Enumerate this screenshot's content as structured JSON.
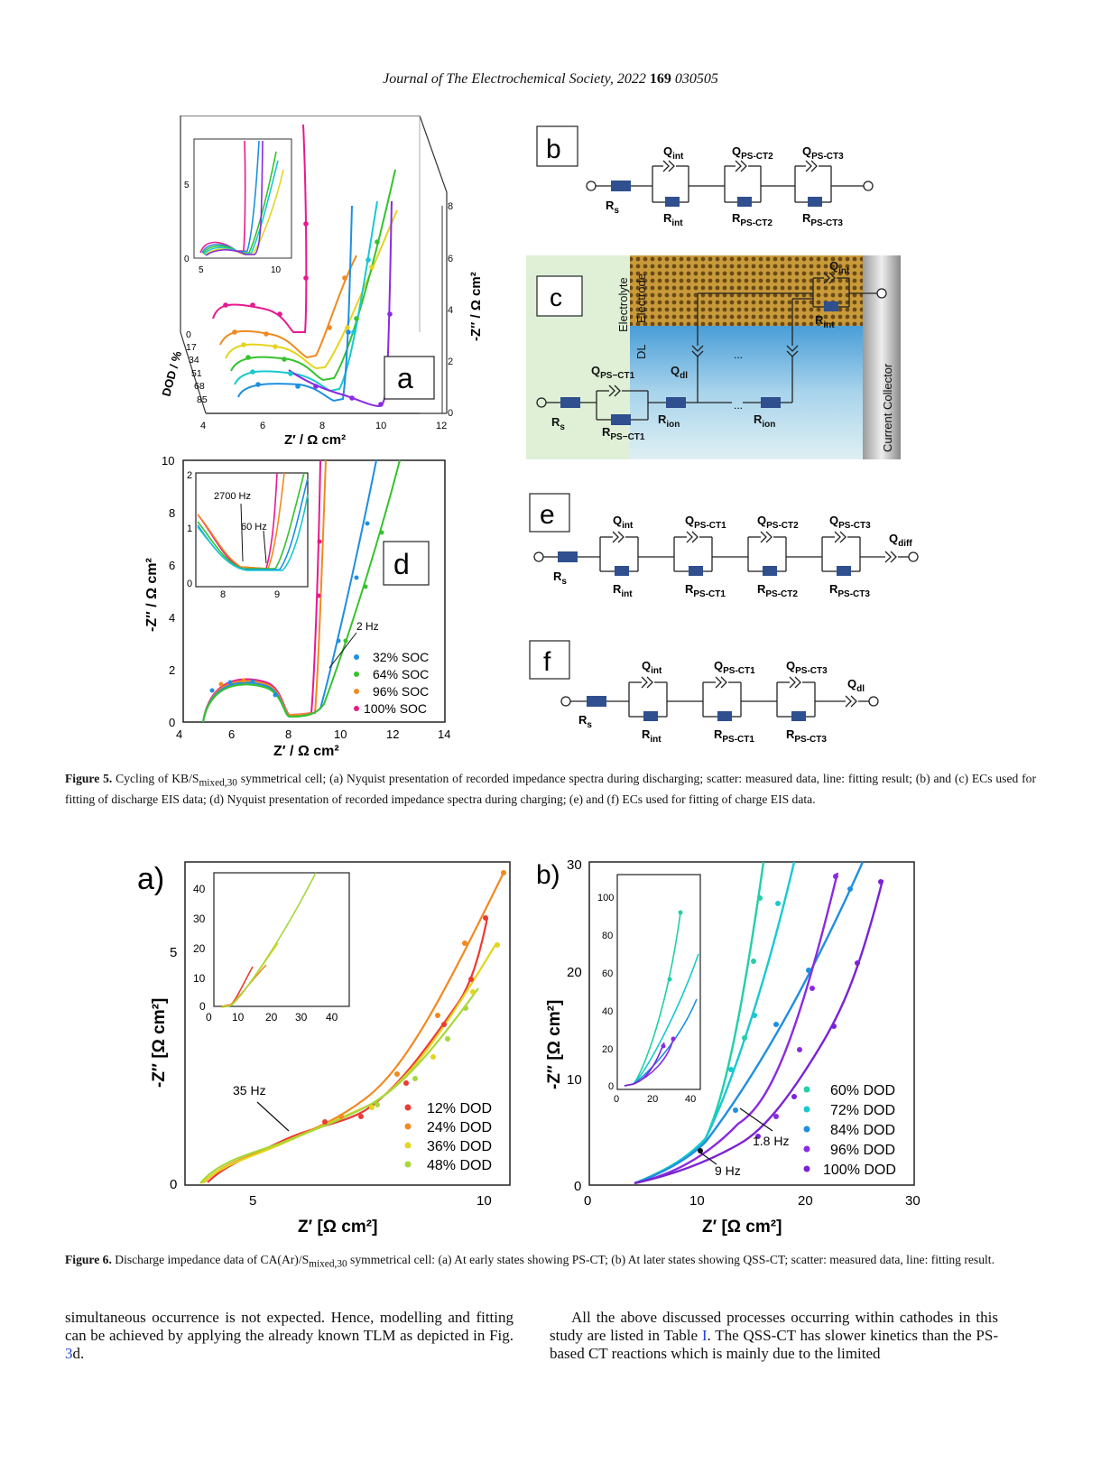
{
  "header": {
    "journal": "Journal of The Electrochemical Society",
    "year_text": ", 2022 ",
    "volume": "169",
    "article": " 030505"
  },
  "colors": {
    "pink": "#e8198f",
    "orange": "#f08a20",
    "yellow": "#e4d51e",
    "green": "#36c22e",
    "cyan": "#19c9cf",
    "blue": "#1f8fe0",
    "violet": "#8a2be2",
    "red": "#ec3a34",
    "lime": "#a6d83a",
    "teal": "#22cfa8",
    "purple": "#7b22d6",
    "navy": "#2f4f8f"
  },
  "fig5": {
    "panel_a": {
      "label": "a",
      "xlabel": "Z′ / Ω cm²",
      "ylabel": "-Z″ / Ω cm²",
      "depth_label": "DOD / %",
      "x_ticks": [
        "4",
        "6",
        "8",
        "10",
        "12"
      ],
      "z_ticks": [
        "0",
        "2",
        "4",
        "6",
        "8"
      ],
      "depth_ticks": [
        "0",
        "17",
        "34",
        "51",
        "68",
        "85"
      ],
      "inset": {
        "x_ticks": [
          "5",
          "10"
        ],
        "y_ticks": [
          "0",
          "5"
        ]
      }
    },
    "panel_d": {
      "label": "d",
      "xlabel": "Z′ / Ω cm²",
      "ylabel": "-Z″ / Ω cm²",
      "x_ticks": [
        "4",
        "6",
        "8",
        "10",
        "12",
        "14"
      ],
      "y_ticks": [
        "0",
        "2",
        "4",
        "6",
        "8",
        "10"
      ],
      "annotation": "2 Hz",
      "legend": [
        "32% SOC",
        "64% SOC",
        "96% SOC",
        "100% SOC"
      ],
      "inset": {
        "x_ticks": [
          "8",
          "9"
        ],
        "y_ticks": [
          "0",
          "1",
          "2"
        ],
        "annot1": "2700 Hz",
        "annot2": "60 Hz"
      }
    },
    "panel_b": {
      "label": "b",
      "Rs": "R",
      "Rs_sub": "s",
      "Qint": "Q",
      "Qint_sub": "int",
      "Rint": "R",
      "Rint_sub": "int",
      "Q2": "Q",
      "Q2_sub": "PS-CT2",
      "R2": "R",
      "R2_sub": "PS-CT2",
      "Q3": "Q",
      "Q3_sub": "PS-CT3",
      "R3": "R",
      "R3_sub": "PS-CT3"
    },
    "panel_c": {
      "label": "c",
      "electrolyte": "Electrolyte",
      "electrode": "Electrode",
      "dl": "DL",
      "collector": "Current Collector",
      "Qint": "Q",
      "Qint_sub": "int",
      "Rint": "R",
      "Rint_sub": "int",
      "Qdl": "Q",
      "Qdl_sub": "dl",
      "Qps": "Q",
      "Qps_sub": "PS−CT1",
      "Rps": "R",
      "Rps_sub": "PS−CT1",
      "Rs": "R",
      "Rs_sub": "s",
      "Rion": "R",
      "Rion_sub": "ion",
      "dots": "..."
    },
    "panel_e": {
      "label": "e",
      "Rs": "R",
      "Rs_sub": "s",
      "Qint": "Q",
      "Qint_sub": "int",
      "Rint": "R",
      "Rint_sub": "int",
      "Q1": "Q",
      "Q1_sub": "PS-CT1",
      "R1": "R",
      "R1_sub": "PS-CT1",
      "Q2": "Q",
      "Q2_sub": "PS-CT2",
      "R2": "R",
      "R2_sub": "PS-CT2",
      "Q3": "Q",
      "Q3_sub": "PS-CT3",
      "R3": "R",
      "R3_sub": "PS-CT3",
      "Qd": "Q",
      "Qd_sub": "diff"
    },
    "panel_f": {
      "label": "f",
      "Rs": "R",
      "Rs_sub": "s",
      "Qint": "Q",
      "Qint_sub": "int",
      "Rint": "R",
      "Rint_sub": "int",
      "Q1": "Q",
      "Q1_sub": "PS-CT1",
      "R1": "R",
      "R1_sub": "PS-CT1",
      "Q3": "Q",
      "Q3_sub": "PS-CT3",
      "R3": "R",
      "R3_sub": "PS-CT3",
      "Qd": "Q",
      "Qd_sub": "dl"
    },
    "caption": {
      "title": "Figure 5.",
      "t1": " Cycling of KB/S",
      "sub": "mixed,30",
      "t2": " symmetrical cell; (a) Nyquist presentation of recorded impedance spectra during discharging; scatter: measured data, line: fitting result; (b) and (c) ECs used for fitting of discharge EIS data; (d) Nyquist presentation of recorded impedance spectra during charging; (e) and (f) ECs used for fitting of charge EIS data."
    }
  },
  "fig6": {
    "panel_a": {
      "label": "a)",
      "xlabel": "Z′ [Ω cm²]",
      "ylabel": "-Z″ [Ω cm²]",
      "x_ticks": [
        "5",
        "10"
      ],
      "y_ticks": [
        "0",
        "5"
      ],
      "annotation": "35 Hz",
      "legend": [
        "12% DOD",
        "24% DOD",
        "36% DOD",
        "48% DOD"
      ],
      "inset": {
        "x_ticks": [
          "0",
          "10",
          "20",
          "30",
          "40"
        ],
        "y_ticks": [
          "0",
          "10",
          "20",
          "30",
          "40"
        ]
      }
    },
    "panel_b": {
      "label": "b)",
      "xlabel": "Z′ [Ω cm²]",
      "ylabel": "-Z″ [Ω cm²]",
      "x_ticks": [
        "0",
        "10",
        "20",
        "30"
      ],
      "y_ticks": [
        "0",
        "10",
        "20",
        "30"
      ],
      "annot1": "1.8 Hz",
      "annot2": "9 Hz",
      "legend": [
        "60% DOD",
        "72% DOD",
        "84% DOD",
        "96% DOD",
        "100% DOD"
      ],
      "inset": {
        "x_ticks": [
          "0",
          "20",
          "40"
        ],
        "y_ticks": [
          "0",
          "20",
          "40",
          "60",
          "80",
          "100"
        ]
      }
    },
    "caption": {
      "title": "Figure 6.",
      "t1": " Discharge impedance data of CA(Ar)/S",
      "sub": "mixed,30",
      "t2": " symmetrical cell: (a) At early states showing PS-CT; (b) At later states showing QSS-CT; scatter: measured data, line: fitting result."
    }
  },
  "body": {
    "left": "simultaneous occurrence is not expected. Hence, modelling and fitting can be achieved by applying the already known TLM as depicted in Fig. ",
    "left_link": "3",
    "left_end": "d.",
    "right1": "All the above discussed processes occurring within cathodes in this study are listed in Table ",
    "right_link": "I",
    "right2": ". The QSS-CT has slower kinetics than the PS-based CT reactions which is mainly due to the limited"
  }
}
